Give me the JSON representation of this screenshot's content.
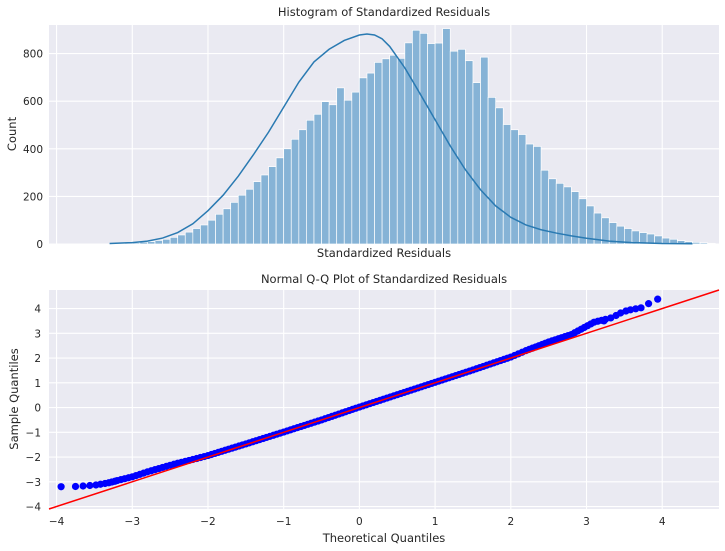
{
  "chart_data": [
    {
      "type": "bar",
      "title": "Histogram of Standardized Residuals",
      "xlabel": "Standardized Residuals",
      "ylabel": "Count",
      "ylim": [
        0,
        920
      ],
      "yticks": [
        0,
        200,
        400,
        600,
        800
      ],
      "xlim": [
        -4.1,
        4.75
      ],
      "x_ticks_shown": false,
      "grid": true,
      "bin_width": 0.1,
      "bin_start": -3.3,
      "values": [
        2,
        3,
        4,
        5,
        8,
        10,
        15,
        20,
        28,
        38,
        50,
        65,
        80,
        100,
        125,
        148,
        175,
        205,
        230,
        262,
        290,
        325,
        362,
        400,
        440,
        480,
        520,
        545,
        598,
        585,
        656,
        604,
        638,
        698,
        718,
        763,
        778,
        793,
        780,
        845,
        898,
        885,
        842,
        844,
        905,
        810,
        818,
        770,
        678,
        785,
        616,
        572,
        502,
        480,
        460,
        420,
        410,
        310,
        274,
        255,
        240,
        220,
        190,
        160,
        130,
        110,
        90,
        75,
        65,
        55,
        48,
        42,
        34,
        25,
        20,
        14,
        10,
        7,
        5,
        3
      ],
      "kde": {
        "x": [
          -3.3,
          -3.0,
          -2.8,
          -2.6,
          -2.4,
          -2.2,
          -2.0,
          -1.8,
          -1.6,
          -1.4,
          -1.2,
          -1.0,
          -0.8,
          -0.6,
          -0.4,
          -0.2,
          0.0,
          0.1,
          0.2,
          0.3,
          0.4,
          0.6,
          0.8,
          1.0,
          1.2,
          1.4,
          1.6,
          1.8,
          2.0,
          2.2,
          2.4,
          2.6,
          2.8,
          3.0,
          3.3,
          3.6,
          4.0,
          4.4
        ],
        "y": [
          2,
          6,
          12,
          25,
          48,
          85,
          140,
          205,
          285,
          375,
          470,
          575,
          680,
          765,
          818,
          855,
          878,
          882,
          878,
          862,
          830,
          740,
          632,
          522,
          412,
          312,
          228,
          160,
          112,
          80,
          60,
          46,
          34,
          24,
          12,
          6,
          2,
          1
        ]
      }
    },
    {
      "type": "scatter",
      "title": "Normal Q-Q Plot of Standardized Residuals",
      "xlabel": "Theoretical Quantiles",
      "ylabel": "Sample Quantiles",
      "xlim": [
        -4.1,
        4.75
      ],
      "ylim": [
        -4.1,
        4.75
      ],
      "xticks": [
        -4,
        -3,
        -2,
        -1,
        0,
        1,
        2,
        3,
        4
      ],
      "yticks": [
        -4,
        -3,
        -2,
        -1,
        0,
        1,
        2,
        3,
        4
      ],
      "grid": true,
      "point_color": "#0000ff",
      "line_color": "#ff0000",
      "reference_line": {
        "slope": 1,
        "intercept": 0
      },
      "curve_points": [
        [
          -3.2,
          -2.95
        ],
        [
          -3.0,
          -2.8
        ],
        [
          -2.8,
          -2.6
        ],
        [
          -2.6,
          -2.42
        ],
        [
          -2.4,
          -2.25
        ],
        [
          -2.2,
          -2.1
        ],
        [
          -2.0,
          -1.94
        ],
        [
          -1.5,
          -1.47
        ],
        [
          -1.0,
          -0.99
        ],
        [
          -0.5,
          -0.5
        ],
        [
          0.0,
          0.02
        ],
        [
          0.5,
          0.52
        ],
        [
          1.0,
          1.02
        ],
        [
          1.5,
          1.52
        ],
        [
          2.0,
          2.04
        ],
        [
          2.2,
          2.3
        ],
        [
          2.5,
          2.65
        ],
        [
          2.8,
          2.95
        ],
        [
          3.1,
          3.45
        ],
        [
          3.3,
          3.6
        ]
      ],
      "tail_points": [
        [
          -3.94,
          -3.2
        ],
        [
          -3.75,
          -3.19
        ],
        [
          -3.65,
          -3.17
        ],
        [
          -3.56,
          -3.15
        ],
        [
          -3.48,
          -3.13
        ],
        [
          -3.42,
          -3.1
        ],
        [
          -3.36,
          -3.07
        ],
        [
          -3.31,
          -3.04
        ],
        [
          -3.27,
          -3.01
        ],
        [
          -3.23,
          -2.98
        ],
        [
          3.23,
          3.5
        ],
        [
          3.32,
          3.62
        ],
        [
          3.39,
          3.72
        ],
        [
          3.45,
          3.82
        ],
        [
          3.52,
          3.9
        ],
        [
          3.58,
          3.95
        ],
        [
          3.65,
          3.99
        ],
        [
          3.72,
          4.03
        ],
        [
          3.82,
          4.2
        ],
        [
          3.94,
          4.38
        ]
      ]
    }
  ]
}
